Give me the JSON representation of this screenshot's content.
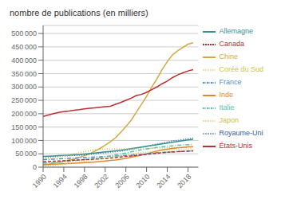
{
  "chart_data": {
    "type": "line",
    "ylabel": "nombre de publications (en milliers)",
    "x": [
      1990,
      1991,
      1992,
      1993,
      1994,
      1995,
      1996,
      1997,
      1998,
      1999,
      2000,
      2001,
      2002,
      2003,
      2004,
      2005,
      2006,
      2007,
      2008,
      2009,
      2010,
      2011,
      2012,
      2013,
      2014,
      2015,
      2016,
      2017,
      2018,
      2019
    ],
    "series": [
      {
        "name": "Chine",
        "color": "#d4a843",
        "line_style": "solid",
        "values": [
          10000,
          12000,
          15000,
          18000,
          22000,
          26000,
          30000,
          36000,
          43000,
          50000,
          60000,
          70000,
          82000,
          95000,
          110000,
          130000,
          152000,
          175000,
          205000,
          235000,
          265000,
          300000,
          330000,
          365000,
          395000,
          420000,
          435000,
          448000,
          460000,
          465000
        ]
      },
      {
        "name": "États-Unis",
        "color": "#b83030",
        "line_style": "solid",
        "values": [
          190000,
          195000,
          200000,
          205000,
          208000,
          210000,
          213000,
          215000,
          218000,
          220000,
          222000,
          224000,
          226000,
          228000,
          235000,
          242000,
          250000,
          258000,
          268000,
          272000,
          280000,
          290000,
          300000,
          312000,
          322000,
          335000,
          345000,
          353000,
          360000,
          365000
        ]
      },
      {
        "name": "Royaume-Uni",
        "color": "#3060a0",
        "line_style": "dotted",
        "values": [
          38000,
          39000,
          40000,
          41000,
          42000,
          43000,
          44000,
          45000,
          46000,
          48000,
          50000,
          52000,
          54000,
          56000,
          58000,
          60000,
          63000,
          66000,
          70000,
          74000,
          78000,
          82000,
          86000,
          90000,
          94000,
          98000,
          100000,
          103000,
          106000,
          108000
        ]
      },
      {
        "name": "Allemagne",
        "color": "#3a9090",
        "line_style": "solid",
        "values": [
          40000,
          41000,
          42000,
          43000,
          44000,
          45000,
          46000,
          47000,
          49000,
          51000,
          53000,
          55000,
          57000,
          59000,
          61000,
          63000,
          66000,
          69000,
          72000,
          75000,
          78000,
          81000,
          84000,
          87000,
          90000,
          93000,
          96000,
          99000,
          102000,
          104000
        ]
      },
      {
        "name": "Japon",
        "color": "#c8c040",
        "line_style": "dotted",
        "values": [
          30000,
          33000,
          36000,
          39000,
          42000,
          46000,
          50000,
          54000,
          58000,
          62000,
          65000,
          67000,
          68000,
          68000,
          68000,
          68000,
          68000,
          68000,
          69000,
          69000,
          70000,
          71000,
          72000,
          72000,
          73000,
          73000,
          74000,
          74000,
          75000,
          75000
        ]
      },
      {
        "name": "Inde",
        "color": "#e08830",
        "line_style": "solid",
        "values": [
          9000,
          10000,
          11000,
          12000,
          13000,
          14000,
          15000,
          16000,
          17000,
          18000,
          19000,
          21000,
          23000,
          25000,
          27000,
          30000,
          33000,
          37000,
          41000,
          45000,
          50000,
          55000,
          60000,
          65000,
          68000,
          70000,
          72000,
          74000,
          76000,
          77000
        ]
      },
      {
        "name": "France",
        "color": "#5090d0",
        "line_style": "dashdot",
        "values": [
          28000,
          29000,
          30000,
          31000,
          32000,
          33000,
          34000,
          35000,
          36000,
          37000,
          38000,
          39000,
          40000,
          41000,
          42000,
          43000,
          44000,
          45000,
          46000,
          48000,
          50000,
          52000,
          54000,
          55000,
          56000,
          57000,
          58000,
          59000,
          60000,
          61000
        ]
      },
      {
        "name": "Italie",
        "color": "#60c0b0",
        "line_style": "dashdot",
        "values": [
          15000,
          16000,
          17000,
          18000,
          20000,
          22000,
          24000,
          26000,
          28000,
          30000,
          33000,
          36000,
          39000,
          42000,
          46000,
          50000,
          53000,
          57000,
          61000,
          65000,
          68000,
          71000,
          74000,
          76000,
          78000,
          80000,
          82000,
          83000,
          84000,
          85000
        ]
      },
      {
        "name": "Canada",
        "color": "#b03030",
        "line_style": "dashed",
        "values": [
          20000,
          21000,
          22000,
          23000,
          24000,
          25000,
          26000,
          27000,
          28000,
          29000,
          30000,
          31000,
          32000,
          34000,
          36000,
          38000,
          40000,
          42000,
          44000,
          46000,
          48000,
          50000,
          52000,
          54000,
          56000,
          57000,
          58000,
          59000,
          60000,
          61000
        ]
      },
      {
        "name": "Corée du Sud",
        "color": "#c8c840",
        "line_style": "dotted",
        "values": [
          5000,
          6000,
          7000,
          9000,
          11000,
          13000,
          16000,
          19000,
          22000,
          25000,
          28000,
          31000,
          34000,
          37000,
          40000,
          43000,
          46000,
          49000,
          52000,
          55000,
          57000,
          58000,
          60000,
          62000,
          63000,
          64000,
          65000,
          66000,
          67000,
          68000
        ]
      }
    ],
    "xlim": [
      1990,
      2020
    ],
    "xticks": [
      1990,
      1994,
      1998,
      2002,
      2006,
      2010,
      2014,
      2018
    ],
    "ylim": [
      0,
      530000
    ],
    "yticks": [
      0,
      {
        "value": 50000,
        "label": "50 000"
      },
      {
        "value": 100000,
        "label": "100 000"
      },
      {
        "value": 150000,
        "label": "150 000"
      },
      {
        "value": 200000,
        "label": "200 000"
      },
      {
        "value": 250000,
        "label": "250 000"
      },
      {
        "value": 300000,
        "label": "300 000"
      },
      {
        "value": 350000,
        "label": "350 000"
      },
      {
        "value": 400000,
        "label": "400 000"
      },
      {
        "value": 450000,
        "label": "450 000"
      },
      {
        "value": 500000,
        "label": "500 000"
      }
    ],
    "grid": true,
    "legend": "right"
  }
}
